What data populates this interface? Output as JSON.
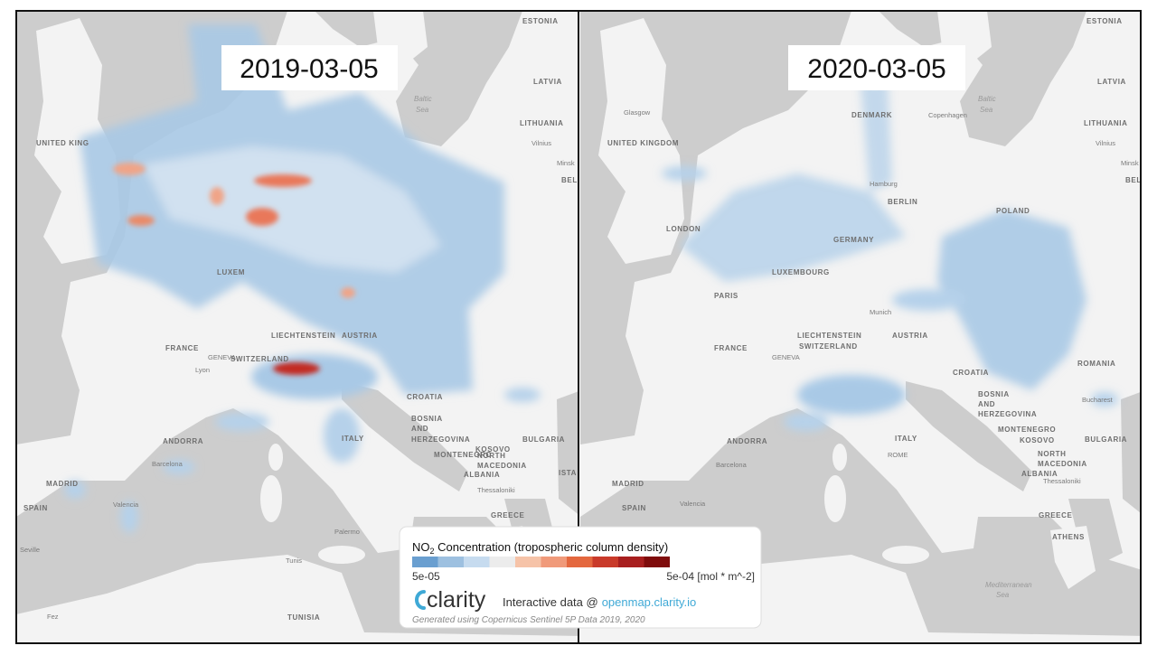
{
  "panels": [
    {
      "date": "2019-03-05",
      "labels": [
        "ESTONIA",
        "LATVIA",
        "LITHUANIA",
        "Vilnius",
        "Baltic",
        "Sea",
        "UNITED KING",
        "LUXEM",
        "FRANCE",
        "GENEVA",
        "Lyon",
        "SWITZERLAND",
        "LIECHTENSTEIN",
        "AUSTRIA",
        "CROATIA",
        "BOSNIA",
        "AND",
        "HERZEGOVINA",
        "ITALY",
        "MONTENEGRO",
        "KOSOVO",
        "NORTH",
        "MACEDONIA",
        "ALBANIA",
        "Thessaloniki",
        "BULGARIA",
        "GREECE",
        "ANDORRA",
        "Barcelona",
        "MADRID",
        "SPAIN",
        "Valencia",
        "Seville",
        "Palermo",
        "Tunis",
        "TUNISIA",
        "Fez",
        "BEL",
        "Minsk",
        "ISTA"
      ]
    },
    {
      "date": "2020-03-05",
      "labels": [
        "ESTONIA",
        "LATVIA",
        "LITHUANIA",
        "Vilnius",
        "Baltic",
        "Sea",
        "Glasgow",
        "DENMARK",
        "Copenhagen",
        "UNITED KINGDOM",
        "LONDON",
        "BERLIN",
        "Hamburg",
        "POLAND",
        "GERMANY",
        "LUXEMBOURG",
        "PARIS",
        "Munich",
        "FRANCE",
        "GENEVA",
        "LIECHTENSTEIN",
        "AUSTRIA",
        "SWITZERLAND",
        "ROMANIA",
        "Bucharest",
        "CROATIA",
        "BOSNIA",
        "AND",
        "HERZEGOVINA",
        "ITALY",
        "ROME",
        "MONTENEGRO",
        "KOSOVO",
        "BULGARIA",
        "NORTH",
        "MACEDONIA",
        "ALBANIA",
        "Thessaloniki",
        "GREECE",
        "ATHENS",
        "ANDORRA",
        "Barcelona",
        "MADRID",
        "SPAIN",
        "Valencia",
        "Mediterranean",
        "Sea",
        "Minsk",
        "BEL"
      ]
    }
  ],
  "legend": {
    "title_main": "NO",
    "title_sub": "2",
    "title_rest": " Concentration (tropospheric column density)",
    "colors": [
      "#6a9fd0",
      "#9dc0e0",
      "#c6dbef",
      "#ececec",
      "#f6c3a8",
      "#f09a7a",
      "#e4683f",
      "#c93a2a",
      "#a81f1f",
      "#7f0c0c"
    ],
    "min_label": "5e-05",
    "max_label": "5e-04 [mol * m^-2]",
    "brand": "clarity",
    "link_prefix": "Interactive data @",
    "link": "openmap.clarity.io",
    "credit": "Generated using Copernicus Sentinel 5P Data 2019, 2020"
  }
}
